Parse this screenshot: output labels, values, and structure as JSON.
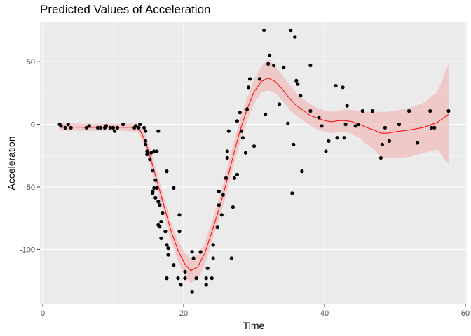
{
  "chart_data": {
    "type": "scatter",
    "title": "Predicted Values of Acceleration",
    "xlabel": "Time",
    "ylabel": "Acceleration",
    "xlim": [
      -0.4,
      60.3
    ],
    "ylim": [
      -144,
      82
    ],
    "x_ticks": [
      0,
      20,
      40,
      60
    ],
    "y_ticks": [
      -100,
      -50,
      0,
      50
    ],
    "grid": true,
    "colors": {
      "panel": "#ebebeb",
      "grid_major": "#ffffff",
      "grid_minor": "#f5f5f5",
      "points": "#000000",
      "fit_line": "#ff0000",
      "ci_band": "#f4a6a6"
    },
    "points": [
      [
        2.4,
        0
      ],
      [
        2.6,
        -1.3
      ],
      [
        3.2,
        -2.7
      ],
      [
        3.6,
        0
      ],
      [
        4.0,
        -2.7
      ],
      [
        6.2,
        -2.7
      ],
      [
        6.6,
        -1.3
      ],
      [
        7.8,
        -2.7
      ],
      [
        8.2,
        -2.7
      ],
      [
        8.8,
        -2.7
      ],
      [
        9.0,
        -1.3
      ],
      [
        9.6,
        -2.7
      ],
      [
        10.0,
        -2.7
      ],
      [
        10.2,
        -5.4
      ],
      [
        10.6,
        -2.7
      ],
      [
        11.4,
        0
      ],
      [
        13.0,
        -2.7
      ],
      [
        13.2,
        -1.3
      ],
      [
        13.6,
        -2.7
      ],
      [
        13.8,
        0
      ],
      [
        14.4,
        -2.7
      ],
      [
        14.6,
        -5.4
      ],
      [
        14.6,
        -13.3
      ],
      [
        14.6,
        -16.0
      ],
      [
        14.8,
        -21.5
      ],
      [
        14.8,
        -24.0
      ],
      [
        15.2,
        -28.0
      ],
      [
        15.4,
        -22.7
      ],
      [
        15.6,
        -37.0
      ],
      [
        15.6,
        -53.5
      ],
      [
        15.6,
        -55.0
      ],
      [
        15.8,
        -21.5
      ],
      [
        15.8,
        -50.8
      ],
      [
        16.0,
        -44.6
      ],
      [
        16.0,
        -58.6
      ],
      [
        16.2,
        -21.5
      ],
      [
        16.2,
        -50.8
      ],
      [
        16.4,
        -5.4
      ],
      [
        16.4,
        -61.7
      ],
      [
        16.4,
        -80.4
      ],
      [
        16.6,
        -64.4
      ],
      [
        16.6,
        -81.8
      ],
      [
        16.8,
        -91.1
      ],
      [
        16.8,
        -77.7
      ],
      [
        17.0,
        -71.0
      ],
      [
        17.4,
        -85.6
      ],
      [
        17.6,
        -96.4
      ],
      [
        17.6,
        -123.1
      ],
      [
        17.6,
        -37.5
      ],
      [
        17.8,
        -99.1
      ],
      [
        17.8,
        -104.4
      ],
      [
        18.6,
        -50.8
      ],
      [
        18.6,
        -112.5
      ],
      [
        19.2,
        -123.1
      ],
      [
        19.4,
        -72.3
      ],
      [
        19.4,
        -85.6
      ],
      [
        19.6,
        -128.3
      ],
      [
        20.2,
        -123.1
      ],
      [
        20.2,
        -117.9
      ],
      [
        21.2,
        -134.0
      ],
      [
        21.2,
        -101.9
      ],
      [
        21.4,
        -107.1
      ],
      [
        21.8,
        -123.1
      ],
      [
        22.4,
        -102.0
      ],
      [
        23.2,
        -123.1
      ],
      [
        23.2,
        -128.3
      ],
      [
        23.4,
        -115.1
      ],
      [
        24.0,
        -123.1
      ],
      [
        24.2,
        -107.1
      ],
      [
        24.2,
        -96.4
      ],
      [
        24.8,
        -82.3
      ],
      [
        25.0,
        -64.4
      ],
      [
        25.0,
        -53.6
      ],
      [
        25.4,
        -72.3
      ],
      [
        25.6,
        -56.3
      ],
      [
        26.0,
        -42.9
      ],
      [
        26.2,
        -26.8
      ],
      [
        26.2,
        -21.5
      ],
      [
        26.4,
        -5.4
      ],
      [
        26.8,
        -107.1
      ],
      [
        27.0,
        -66.0
      ],
      [
        27.2,
        -42.9
      ],
      [
        27.6,
        -40.2
      ],
      [
        27.6,
        2.7
      ],
      [
        28.0,
        9.4
      ],
      [
        28.2,
        -5.4
      ],
      [
        28.4,
        -10.7
      ],
      [
        28.8,
        -22.7
      ],
      [
        29.0,
        12.1
      ],
      [
        29.2,
        29.5
      ],
      [
        29.4,
        36.2
      ],
      [
        30.0,
        -17.4
      ],
      [
        30.8,
        36.2
      ],
      [
        31.4,
        75.0
      ],
      [
        31.6,
        8.0
      ],
      [
        32.0,
        48.2
      ],
      [
        32.2,
        54.9
      ],
      [
        32.8,
        46.9
      ],
      [
        33.6,
        16.1
      ],
      [
        34.2,
        45.4
      ],
      [
        34.8,
        0.8
      ],
      [
        35.2,
        75.0
      ],
      [
        35.4,
        -55.0
      ],
      [
        35.6,
        -16.1
      ],
      [
        35.8,
        69.7
      ],
      [
        36.0,
        34.8
      ],
      [
        36.2,
        32.1
      ],
      [
        36.6,
        22.8
      ],
      [
        36.8,
        -37.5
      ],
      [
        38.0,
        10.7
      ],
      [
        38.0,
        46.9
      ],
      [
        39.2,
        5.4
      ],
      [
        39.6,
        -1.3
      ],
      [
        40.2,
        -21.5
      ],
      [
        40.6,
        -13.3
      ],
      [
        41.6,
        30.8
      ],
      [
        41.8,
        -10.7
      ],
      [
        42.6,
        29.5
      ],
      [
        42.8,
        -10.7
      ],
      [
        43.0,
        0
      ],
      [
        43.2,
        14.8
      ],
      [
        44.4,
        -1.3
      ],
      [
        44.8,
        0
      ],
      [
        45.4,
        10.7
      ],
      [
        46.8,
        10.7
      ],
      [
        48.0,
        -26.8
      ],
      [
        48.2,
        -16.1
      ],
      [
        48.6,
        -2.7
      ],
      [
        49.2,
        -13.3
      ],
      [
        50.6,
        0
      ],
      [
        52.0,
        10.7
      ],
      [
        53.2,
        -14.8
      ],
      [
        55.0,
        10.7
      ],
      [
        55.2,
        -2.7
      ],
      [
        55.6,
        -2.7
      ],
      [
        57.6,
        10.7
      ]
    ],
    "fit": [
      [
        2.4,
        -2.0
      ],
      [
        7.0,
        -2.4
      ],
      [
        11.0,
        -2.3
      ],
      [
        13.6,
        -2.4
      ],
      [
        14.6,
        -14.0
      ],
      [
        15.4,
        -29.0
      ],
      [
        16.2,
        -45.0
      ],
      [
        17.2,
        -65.0
      ],
      [
        18.2,
        -85.0
      ],
      [
        19.2,
        -101.0
      ],
      [
        20.2,
        -112.0
      ],
      [
        21.0,
        -117.0
      ],
      [
        22.0,
        -114.0
      ],
      [
        23.0,
        -103.0
      ],
      [
        24.0,
        -86.0
      ],
      [
        25.0,
        -68.0
      ],
      [
        26.0,
        -48.0
      ],
      [
        27.0,
        -26.0
      ],
      [
        28.0,
        -5.0
      ],
      [
        29.0,
        12.0
      ],
      [
        30.0,
        26.0
      ],
      [
        31.0,
        34.0
      ],
      [
        32.0,
        37.0
      ],
      [
        33.0,
        34.0
      ],
      [
        34.0,
        28.0
      ],
      [
        35.0,
        21.0
      ],
      [
        36.0,
        15.0
      ],
      [
        37.0,
        11.0
      ],
      [
        38.0,
        7.0
      ],
      [
        39.0,
        5.0
      ],
      [
        40.0,
        3.0
      ],
      [
        41.0,
        2.0
      ],
      [
        42.0,
        3.0
      ],
      [
        43.0,
        3.0
      ],
      [
        44.0,
        2.0
      ],
      [
        45.0,
        0.0
      ],
      [
        46.0,
        -2.5
      ],
      [
        47.0,
        -4.5
      ],
      [
        48.0,
        -7.0
      ],
      [
        49.0,
        -7.0
      ],
      [
        50.0,
        -6.0
      ],
      [
        52.0,
        -4.5
      ],
      [
        54.0,
        -2.5
      ],
      [
        56.0,
        1.5
      ],
      [
        57.6,
        8.0
      ]
    ],
    "ci_upper": [
      [
        2.4,
        1.0
      ],
      [
        7.0,
        0.5
      ],
      [
        11.0,
        0.5
      ],
      [
        13.6,
        1.0
      ],
      [
        14.6,
        -9.0
      ],
      [
        15.4,
        -23.0
      ],
      [
        16.2,
        -38.0
      ],
      [
        17.2,
        -58.0
      ],
      [
        18.2,
        -78.0
      ],
      [
        19.2,
        -93.0
      ],
      [
        20.2,
        -103.0
      ],
      [
        21.0,
        -107.0
      ],
      [
        22.0,
        -104.0
      ],
      [
        23.0,
        -95.0
      ],
      [
        24.0,
        -78.0
      ],
      [
        25.0,
        -60.0
      ],
      [
        26.0,
        -39.0
      ],
      [
        27.0,
        -17.0
      ],
      [
        28.0,
        4.0
      ],
      [
        29.0,
        21.0
      ],
      [
        30.0,
        36.0
      ],
      [
        31.0,
        46.0
      ],
      [
        32.0,
        52.0
      ],
      [
        33.0,
        47.0
      ],
      [
        34.0,
        39.0
      ],
      [
        35.0,
        32.0
      ],
      [
        36.0,
        25.0
      ],
      [
        37.0,
        20.0
      ],
      [
        38.0,
        16.0
      ],
      [
        39.0,
        13.0
      ],
      [
        40.0,
        11.0
      ],
      [
        41.0,
        10.0
      ],
      [
        42.0,
        11.0
      ],
      [
        43.0,
        12.0
      ],
      [
        44.0,
        11.5
      ],
      [
        45.0,
        10.5
      ],
      [
        46.0,
        10.0
      ],
      [
        47.0,
        10.0
      ],
      [
        48.0,
        10.0
      ],
      [
        49.0,
        10.0
      ],
      [
        50.0,
        11.0
      ],
      [
        52.0,
        13.0
      ],
      [
        54.0,
        17.0
      ],
      [
        56.0,
        26.0
      ],
      [
        57.6,
        48.0
      ]
    ],
    "ci_lower": [
      [
        2.4,
        -5.0
      ],
      [
        7.0,
        -5.0
      ],
      [
        11.0,
        -5.0
      ],
      [
        13.6,
        -6.0
      ],
      [
        14.6,
        -19.0
      ],
      [
        15.4,
        -35.0
      ],
      [
        16.2,
        -52.0
      ],
      [
        17.2,
        -72.0
      ],
      [
        18.2,
        -93.0
      ],
      [
        19.2,
        -109.0
      ],
      [
        20.2,
        -122.0
      ],
      [
        21.0,
        -127.0
      ],
      [
        22.0,
        -124.0
      ],
      [
        23.0,
        -112.0
      ],
      [
        24.0,
        -94.0
      ],
      [
        25.0,
        -76.0
      ],
      [
        26.0,
        -57.0
      ],
      [
        27.0,
        -35.0
      ],
      [
        28.0,
        -14.0
      ],
      [
        29.0,
        3.0
      ],
      [
        30.0,
        17.0
      ],
      [
        31.0,
        25.0
      ],
      [
        32.0,
        27.0
      ],
      [
        33.0,
        25.0
      ],
      [
        34.0,
        19.0
      ],
      [
        35.0,
        12.0
      ],
      [
        36.0,
        7.0
      ],
      [
        37.0,
        3.0
      ],
      [
        38.0,
        -1.0
      ],
      [
        39.0,
        -4.0
      ],
      [
        40.0,
        -6.0
      ],
      [
        41.0,
        -7.0
      ],
      [
        42.0,
        -6.0
      ],
      [
        43.0,
        -6.0
      ],
      [
        44.0,
        -8.0
      ],
      [
        45.0,
        -11.0
      ],
      [
        46.0,
        -16.0
      ],
      [
        47.0,
        -20.0
      ],
      [
        48.0,
        -26.0
      ],
      [
        49.0,
        -27.0
      ],
      [
        50.0,
        -27.0
      ],
      [
        52.0,
        -26.0
      ],
      [
        54.0,
        -23.0
      ],
      [
        56.0,
        -20.0
      ],
      [
        57.6,
        -32.0
      ]
    ]
  }
}
